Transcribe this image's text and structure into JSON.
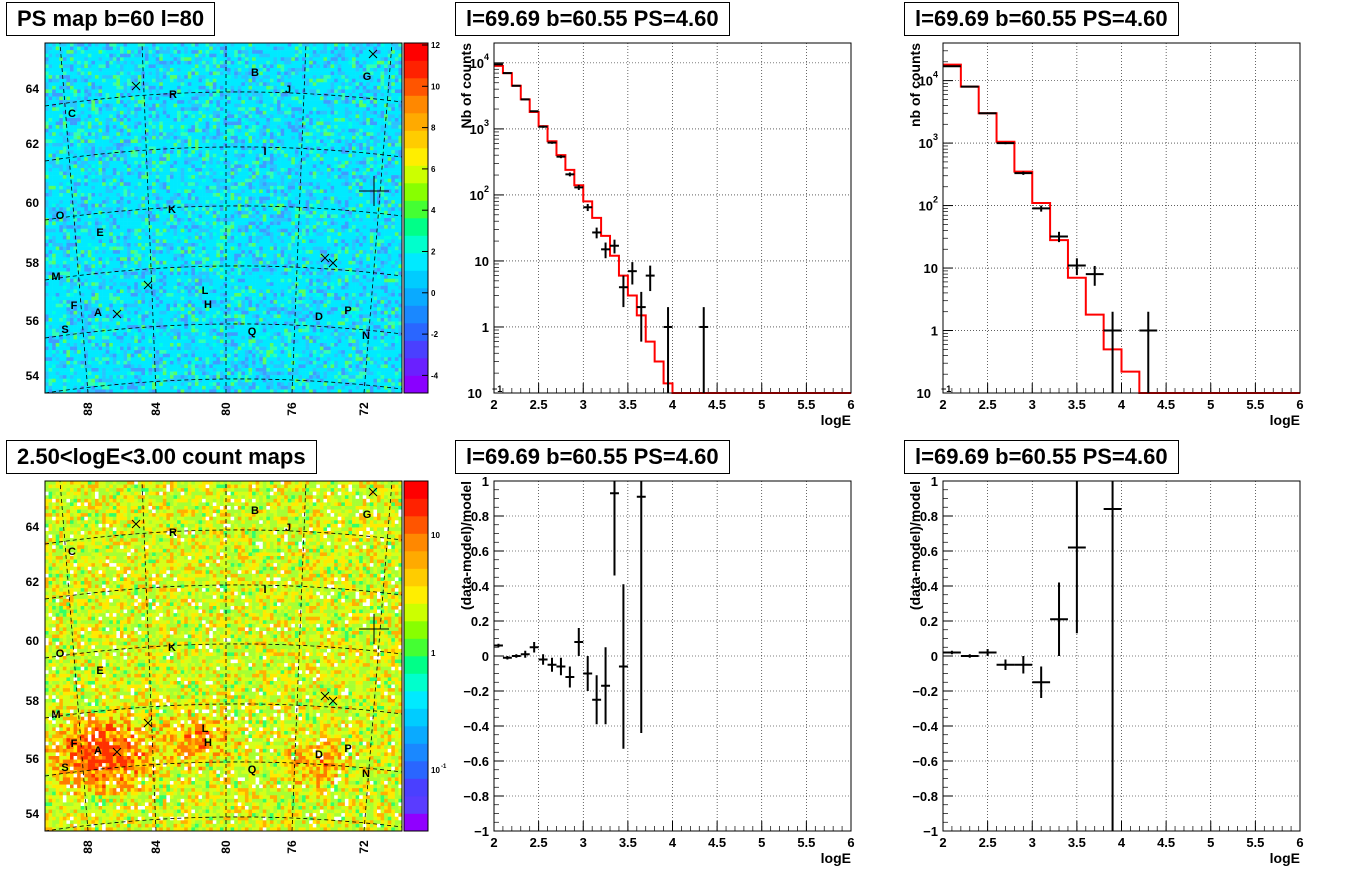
{
  "panels": {
    "map1_title": "PS map b=60 l=80",
    "map2_title": "2.50<logE<3.00 count maps",
    "spec_title": "l=69.69 b=60.55 PS=4.60"
  },
  "maps": {
    "lon_ticks": [
      "88",
      "84",
      "80",
      "76",
      "72"
    ],
    "lat_ticks": [
      "54",
      "56",
      "58",
      "60",
      "62",
      "64"
    ],
    "sources": [
      "A",
      "B",
      "C",
      "D",
      "E",
      "F",
      "G",
      "H",
      "I",
      "J",
      "K",
      "L",
      "M",
      "N",
      "O",
      "P",
      "Q",
      "R",
      "S"
    ],
    "colorbar1_labels": [
      "12",
      "10",
      "8",
      "6",
      "4",
      "2",
      "0",
      "-2",
      "-4"
    ],
    "colorbar2_labels": [
      "10",
      "1",
      "10",
      "-1"
    ]
  },
  "chart_data": [
    {
      "type": "line",
      "title": "l=69.69 b=60.55 PS=4.60",
      "xlabel": "logE",
      "ylabel": "Nb of counts",
      "xlim": [
        2,
        6
      ],
      "ylim": [
        0.1,
        20000
      ],
      "yscale": "log",
      "grid": true,
      "x_ticks": [
        "2",
        "2.5",
        "3",
        "3.5",
        "4",
        "4.5",
        "5",
        "5.5",
        "6"
      ],
      "y_ticks": [
        "10^-1",
        "1",
        "10",
        "10^2",
        "10^3",
        "10^4"
      ],
      "model_step": {
        "edges": [
          2,
          2.1,
          2.2,
          2.3,
          2.4,
          2.5,
          2.6,
          2.7,
          2.8,
          2.9,
          3.0,
          3.1,
          3.2,
          3.3,
          3.4,
          3.5,
          3.6,
          3.7,
          3.8,
          3.9,
          4.0,
          6.0
        ],
        "values": [
          9000,
          7000,
          4500,
          2800,
          1800,
          1100,
          650,
          400,
          240,
          140,
          80,
          45,
          24,
          12,
          6,
          3,
          1.5,
          0.6,
          0.3,
          0.14,
          0.1
        ]
      },
      "points": [
        {
          "x": 2.05,
          "y": 9500,
          "xerr": 0.05,
          "ylo": 9300,
          "yhi": 9700
        },
        {
          "x": 2.15,
          "y": 7000,
          "xerr": 0.05,
          "ylo": 6850,
          "yhi": 7150
        },
        {
          "x": 2.25,
          "y": 4500,
          "xerr": 0.05,
          "ylo": 4400,
          "yhi": 4600
        },
        {
          "x": 2.35,
          "y": 2800,
          "xerr": 0.05,
          "ylo": 2730,
          "yhi": 2870
        },
        {
          "x": 2.45,
          "y": 1850,
          "xerr": 0.05,
          "ylo": 1800,
          "yhi": 1900
        },
        {
          "x": 2.55,
          "y": 1080,
          "xerr": 0.05,
          "ylo": 1040,
          "yhi": 1120
        },
        {
          "x": 2.65,
          "y": 620,
          "xerr": 0.05,
          "ylo": 595,
          "yhi": 645
        },
        {
          "x": 2.75,
          "y": 380,
          "xerr": 0.05,
          "ylo": 360,
          "yhi": 400
        },
        {
          "x": 2.85,
          "y": 205,
          "xerr": 0.05,
          "ylo": 191,
          "yhi": 219
        },
        {
          "x": 2.95,
          "y": 130,
          "xerr": 0.05,
          "ylo": 119,
          "yhi": 141
        },
        {
          "x": 3.05,
          "y": 65,
          "xerr": 0.05,
          "ylo": 57,
          "yhi": 73
        },
        {
          "x": 3.15,
          "y": 27,
          "xerr": 0.05,
          "ylo": 22,
          "yhi": 32
        },
        {
          "x": 3.25,
          "y": 15,
          "xerr": 0.05,
          "ylo": 11,
          "yhi": 19
        },
        {
          "x": 3.35,
          "y": 17,
          "xerr": 0.05,
          "ylo": 13,
          "yhi": 21
        },
        {
          "x": 3.45,
          "y": 4,
          "xerr": 0.05,
          "ylo": 2,
          "yhi": 6
        },
        {
          "x": 3.55,
          "y": 7,
          "xerr": 0.05,
          "ylo": 4.4,
          "yhi": 9.6
        },
        {
          "x": 3.65,
          "y": 2,
          "xerr": 0.05,
          "ylo": 0.6,
          "yhi": 3.4
        },
        {
          "x": 3.75,
          "y": 6,
          "xerr": 0.05,
          "ylo": 3.5,
          "yhi": 8.5
        },
        {
          "x": 3.95,
          "y": 1,
          "xerr": 0.05,
          "ylo": 0.1,
          "yhi": 2
        },
        {
          "x": 4.35,
          "y": 1,
          "xerr": 0.05,
          "ylo": 0.1,
          "yhi": 2
        }
      ]
    },
    {
      "type": "line",
      "title": "l=69.69 b=60.55 PS=4.60",
      "xlabel": "logE",
      "ylabel": "nb of counts",
      "xlim": [
        2,
        6
      ],
      "ylim": [
        0.1,
        40000
      ],
      "yscale": "log",
      "grid": true,
      "x_ticks": [
        "2",
        "2.5",
        "3",
        "3.5",
        "4",
        "4.5",
        "5",
        "5.5",
        "6"
      ],
      "y_ticks": [
        "10^-1",
        "1",
        "10",
        "10^2",
        "10^3",
        "10^4"
      ],
      "model_step": {
        "edges": [
          2,
          2.2,
          2.4,
          2.6,
          2.8,
          3.0,
          3.2,
          3.4,
          3.6,
          3.8,
          4.0,
          4.2,
          4.4,
          6.0
        ],
        "values": [
          18000,
          8000,
          3000,
          1050,
          350,
          110,
          28,
          7,
          1.8,
          0.5,
          0.22,
          0.1,
          0.1
        ]
      },
      "points": [
        {
          "x": 2.1,
          "y": 17000,
          "xerr": 0.1,
          "ylo": 16700,
          "yhi": 17300
        },
        {
          "x": 2.3,
          "y": 8000,
          "xerr": 0.1,
          "ylo": 7850,
          "yhi": 8150
        },
        {
          "x": 2.5,
          "y": 3000,
          "xerr": 0.1,
          "ylo": 2930,
          "yhi": 3070
        },
        {
          "x": 2.7,
          "y": 1000,
          "xerr": 0.1,
          "ylo": 960,
          "yhi": 1040
        },
        {
          "x": 2.9,
          "y": 330,
          "xerr": 0.1,
          "ylo": 310,
          "yhi": 350
        },
        {
          "x": 3.1,
          "y": 90,
          "xerr": 0.1,
          "ylo": 80,
          "yhi": 100
        },
        {
          "x": 3.3,
          "y": 32,
          "xerr": 0.1,
          "ylo": 26,
          "yhi": 38
        },
        {
          "x": 3.5,
          "y": 11,
          "xerr": 0.1,
          "ylo": 7.7,
          "yhi": 14.3
        },
        {
          "x": 3.7,
          "y": 8,
          "xerr": 0.1,
          "ylo": 5.2,
          "yhi": 10.8
        },
        {
          "x": 3.9,
          "y": 1,
          "xerr": 0.1,
          "ylo": 0.1,
          "yhi": 2
        },
        {
          "x": 4.3,
          "y": 1,
          "xerr": 0.1,
          "ylo": 0.1,
          "yhi": 2
        }
      ]
    },
    {
      "type": "scatter",
      "title": "l=69.69 b=60.55 PS=4.60",
      "xlabel": "logE",
      "ylabel": "(data-model)/model",
      "xlim": [
        2,
        6
      ],
      "ylim": [
        -1,
        1
      ],
      "grid": true,
      "x_ticks": [
        "2",
        "2.5",
        "3",
        "3.5",
        "4",
        "4.5",
        "5",
        "5.5",
        "6"
      ],
      "y_ticks": [
        "-1",
        "-0.8",
        "-0.6",
        "-0.4",
        "-0.2",
        "0",
        "0.2",
        "0.4",
        "0.6",
        "0.8",
        "1"
      ],
      "points": [
        {
          "x": 2.05,
          "y": 0.06,
          "xerr": 0.05,
          "ylo": 0.05,
          "yhi": 0.07
        },
        {
          "x": 2.15,
          "y": -0.01,
          "xerr": 0.05,
          "ylo": -0.02,
          "yhi": 0.0
        },
        {
          "x": 2.25,
          "y": 0.0,
          "xerr": 0.05,
          "ylo": -0.01,
          "yhi": 0.01
        },
        {
          "x": 2.35,
          "y": 0.01,
          "xerr": 0.05,
          "ylo": -0.01,
          "yhi": 0.03
        },
        {
          "x": 2.45,
          "y": 0.05,
          "xerr": 0.05,
          "ylo": 0.02,
          "yhi": 0.08
        },
        {
          "x": 2.55,
          "y": -0.02,
          "xerr": 0.05,
          "ylo": -0.05,
          "yhi": 0.01
        },
        {
          "x": 2.65,
          "y": -0.05,
          "xerr": 0.05,
          "ylo": -0.09,
          "yhi": -0.01
        },
        {
          "x": 2.75,
          "y": -0.06,
          "xerr": 0.05,
          "ylo": -0.11,
          "yhi": -0.01
        },
        {
          "x": 2.85,
          "y": -0.12,
          "xerr": 0.05,
          "ylo": -0.18,
          "yhi": -0.06
        },
        {
          "x": 2.95,
          "y": 0.08,
          "xerr": 0.05,
          "ylo": 0.0,
          "yhi": 0.16
        },
        {
          "x": 3.05,
          "y": -0.1,
          "xerr": 0.05,
          "ylo": -0.2,
          "yhi": 0.0
        },
        {
          "x": 3.15,
          "y": -0.25,
          "xerr": 0.05,
          "ylo": -0.39,
          "yhi": -0.11
        },
        {
          "x": 3.25,
          "y": -0.17,
          "xerr": 0.05,
          "ylo": -0.39,
          "yhi": 0.05
        },
        {
          "x": 3.35,
          "y": 0.93,
          "xerr": 0.05,
          "ylo": 0.46,
          "yhi": 1.0
        },
        {
          "x": 3.45,
          "y": -0.06,
          "xerr": 0.05,
          "ylo": -0.53,
          "yhi": 0.41
        },
        {
          "x": 3.65,
          "y": 0.91,
          "xerr": 0.05,
          "ylo": -0.44,
          "yhi": 1.0
        }
      ]
    },
    {
      "type": "scatter",
      "title": "l=69.69 b=60.55 PS=4.60",
      "xlabel": "logE",
      "ylabel": "(data-model)/model",
      "xlim": [
        2,
        6
      ],
      "ylim": [
        -1,
        1
      ],
      "grid": true,
      "x_ticks": [
        "2",
        "2.5",
        "3",
        "3.5",
        "4",
        "4.5",
        "5",
        "5.5",
        "6"
      ],
      "y_ticks": [
        "-1",
        "-0.8",
        "-0.6",
        "-0.4",
        "-0.2",
        "0",
        "0.2",
        "0.4",
        "0.6",
        "0.8",
        "1"
      ],
      "points": [
        {
          "x": 2.1,
          "y": 0.02,
          "xerr": 0.1,
          "ylo": 0.01,
          "yhi": 0.03
        },
        {
          "x": 2.3,
          "y": 0.0,
          "xerr": 0.1,
          "ylo": -0.01,
          "yhi": 0.01
        },
        {
          "x": 2.5,
          "y": 0.02,
          "xerr": 0.1,
          "ylo": 0.0,
          "yhi": 0.04
        },
        {
          "x": 2.7,
          "y": -0.05,
          "xerr": 0.1,
          "ylo": -0.08,
          "yhi": -0.02
        },
        {
          "x": 2.9,
          "y": -0.05,
          "xerr": 0.1,
          "ylo": -0.1,
          "yhi": 0.0
        },
        {
          "x": 3.1,
          "y": -0.15,
          "xerr": 0.1,
          "ylo": -0.24,
          "yhi": -0.06
        },
        {
          "x": 3.3,
          "y": 0.21,
          "xerr": 0.1,
          "ylo": 0.0,
          "yhi": 0.42
        },
        {
          "x": 3.5,
          "y": 0.62,
          "xerr": 0.1,
          "ylo": 0.13,
          "yhi": 1.0
        },
        {
          "x": 3.9,
          "y": 0.84,
          "xerr": 0.1,
          "ylo": -1.0,
          "yhi": 1.0
        }
      ]
    }
  ]
}
